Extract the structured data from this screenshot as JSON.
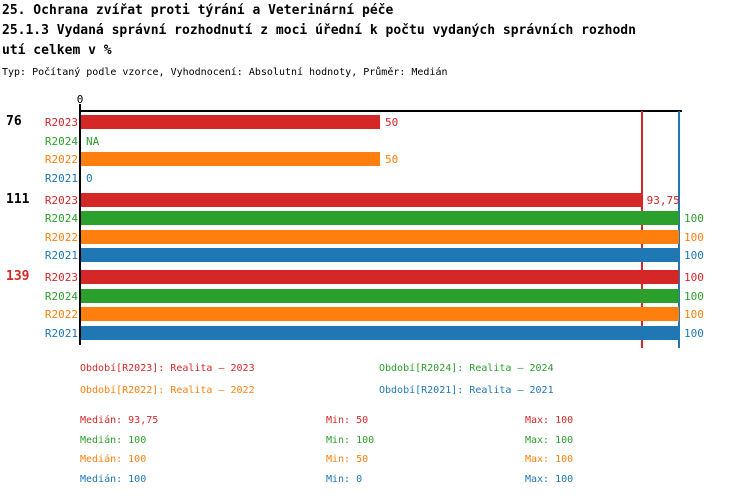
{
  "header": {
    "title_lines": [
      "25. Ochrana zvířat proti týrání a Veterinární péče",
      "25.1.3 Vydaná správní rozhodnutí z moci úřední k počtu vydaných správních rozhodn",
      "utí celkem v %"
    ],
    "meta_line": "Typ: Počítaný podle vzorce, Vyhodnocení: Absolutní hodnoty, Průměr: Medián"
  },
  "colors": {
    "R2023": "#d62728",
    "R2024": "#2ca02c",
    "R2022": "#ff7f0e",
    "R2021": "#1f77b4",
    "axis": "#000000",
    "group_label_normal": "#000000",
    "group_label_alert": "#d62728"
  },
  "chart_data": {
    "type": "bar",
    "orientation": "horizontal",
    "xlim": [
      0,
      100
    ],
    "x_axis_tick_label": "0",
    "grid": false,
    "series_order": [
      "R2023",
      "R2024",
      "R2022",
      "R2021"
    ],
    "groups": [
      {
        "label": "76",
        "label_color": "#000000",
        "bars": [
          {
            "series": "R2023",
            "value": 50,
            "display": "50"
          },
          {
            "series": "R2024",
            "value": null,
            "display": "NA"
          },
          {
            "series": "R2022",
            "value": 50,
            "display": "50"
          },
          {
            "series": "R2021",
            "value": 0,
            "display": "0"
          }
        ]
      },
      {
        "label": "111",
        "label_color": "#000000",
        "bars": [
          {
            "series": "R2023",
            "value": 93.75,
            "display": "93,75"
          },
          {
            "series": "R2024",
            "value": 100,
            "display": "100"
          },
          {
            "series": "R2022",
            "value": 100,
            "display": "100"
          },
          {
            "series": "R2021",
            "value": 100,
            "display": "100"
          }
        ]
      },
      {
        "label": "139",
        "label_color": "#d62728",
        "bars": [
          {
            "series": "R2023",
            "value": 100,
            "display": "100"
          },
          {
            "series": "R2024",
            "value": 100,
            "display": "100"
          },
          {
            "series": "R2022",
            "value": 100,
            "display": "100"
          },
          {
            "series": "R2021",
            "value": 100,
            "display": "100"
          }
        ]
      }
    ],
    "reference_lines": [
      {
        "value": 93.75,
        "color": "#d62728"
      },
      {
        "value": 100,
        "color": "#1f77b4"
      }
    ]
  },
  "legend": {
    "items": [
      {
        "label": "Období[R2023]: Realita – 2023",
        "series": "R2023"
      },
      {
        "label": "Období[R2024]: Realita – 2024",
        "series": "R2024"
      },
      {
        "label": "Období[R2022]: Realita – 2022",
        "series": "R2022"
      },
      {
        "label": "Období[R2021]: Realita – 2021",
        "series": "R2021"
      }
    ]
  },
  "stats": {
    "rows": [
      {
        "series": "R2023",
        "median": "Medián: 93,75",
        "min": "Min: 50",
        "max": "Max: 100"
      },
      {
        "series": "R2024",
        "median": "Medián: 100",
        "min": "Min: 100",
        "max": "Max: 100"
      },
      {
        "series": "R2022",
        "median": "Medián: 100",
        "min": "Min: 50",
        "max": "Max: 100"
      },
      {
        "series": "R2021",
        "median": "Medián: 100",
        "min": "Min: 0",
        "max": "Max: 100"
      }
    ]
  }
}
